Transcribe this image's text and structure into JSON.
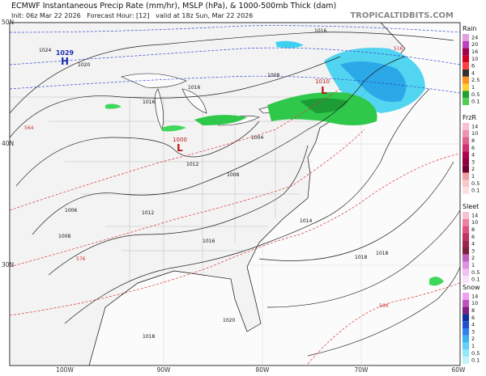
{
  "header": {
    "title": "ECMWF Instantaneous Precip Rate (mm/hr), MSLP (hPa), & 1000-500mb Thick (dam)",
    "subtitle": "Init: 06z Mar 22 2026   Forecast Hour: [12]   valid at 18z Sun, Mar 22 2026",
    "site": "TROPICALTIDBITS.COM"
  },
  "map": {
    "lat_labels": [
      "50N",
      "40N",
      "30N"
    ],
    "lon_labels": [
      "100W",
      "90W",
      "80W",
      "70W",
      "60W"
    ],
    "centers": [
      {
        "pressure": "1029",
        "symbol": "H"
      },
      {
        "pressure": "1000",
        "symbol": "L"
      },
      {
        "pressure": "1010",
        "symbol": "L"
      }
    ],
    "isobar_labels": [
      "1016",
      "1024",
      "1020",
      "1008",
      "1016",
      "1012",
      "1004",
      "1008",
      "1006",
      "1012",
      "1014",
      "1016",
      "1018",
      "1018",
      "1020",
      "1018",
      "1008",
      "1016"
    ],
    "thickness_labels": [
      "516",
      "564",
      "576",
      "564"
    ]
  },
  "legends": [
    {
      "title": "Rain",
      "ticks": [
        "24",
        "20",
        "16",
        "10",
        "6",
        "4",
        "2.5",
        "1",
        "0.5",
        "0.1"
      ]
    },
    {
      "title": "FrzR",
      "ticks": [
        "14",
        "10",
        "8",
        "6",
        "4",
        "3",
        "2",
        "1",
        "0.5",
        "0.1"
      ]
    },
    {
      "title": "Sleet",
      "ticks": [
        "14",
        "10",
        "8",
        "6",
        "4",
        "3",
        "2",
        "1",
        "0.5",
        "0.1"
      ]
    },
    {
      "title": "Snow",
      "ticks": [
        "14",
        "10",
        "8",
        "6",
        "4",
        "3",
        "2",
        "1",
        "0.5",
        "0.1"
      ]
    }
  ]
}
